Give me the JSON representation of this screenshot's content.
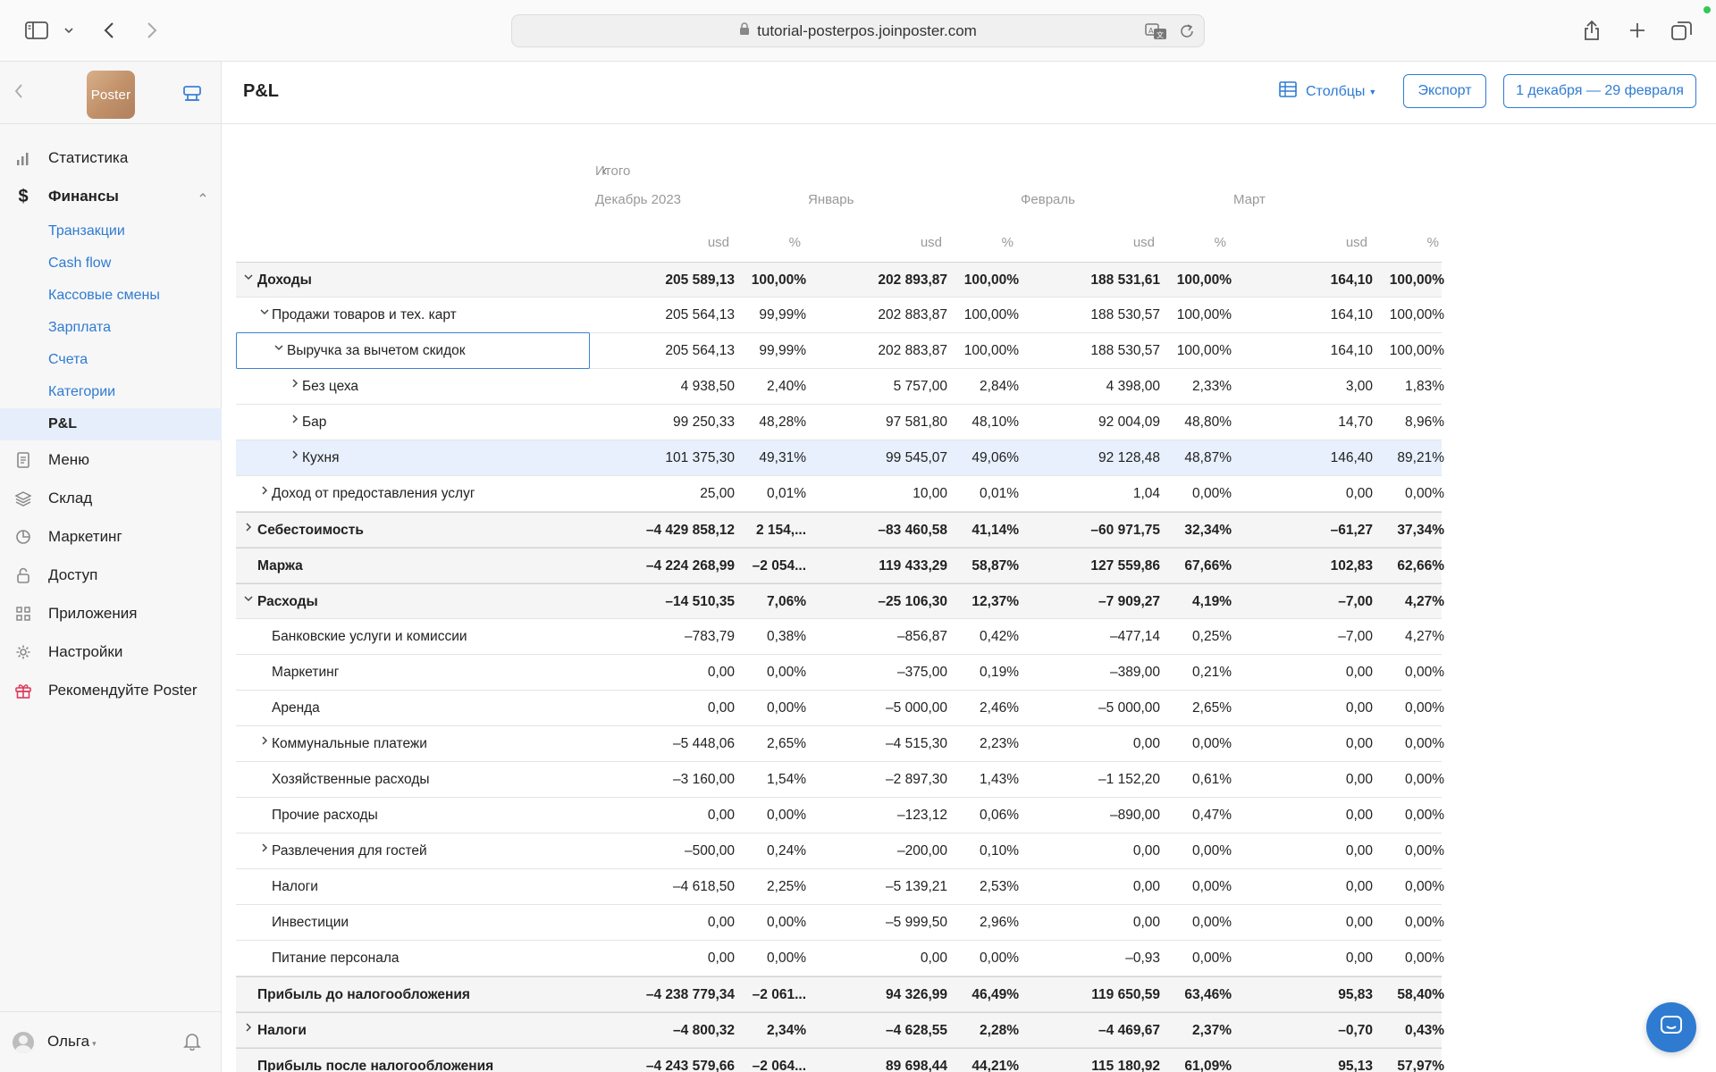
{
  "browser": {
    "url": "tutorial-posterpos.joinposter.com",
    "icons": [
      "sidebar-toggle-icon",
      "chevron-down-icon",
      "back-icon",
      "forward-icon",
      "lock-icon",
      "translate-icon",
      "reload-icon",
      "share-icon",
      "new-tab-icon",
      "tabs-overview-icon"
    ]
  },
  "sidebar": {
    "logo_text": "Poster",
    "nav": [
      {
        "label": "Статистика",
        "icon": "bar-chart-icon"
      },
      {
        "label": "Финансы",
        "icon": "dollar-icon",
        "expanded": true,
        "sub": [
          "Транзакции",
          "Cash flow",
          "Кассовые смены",
          "Зарплата",
          "Счета",
          "Категории",
          "P&L"
        ],
        "active_sub": "P&L"
      },
      {
        "label": "Меню",
        "icon": "document-icon"
      },
      {
        "label": "Склад",
        "icon": "layers-icon"
      },
      {
        "label": "Маркетинг",
        "icon": "pie-icon"
      },
      {
        "label": "Доступ",
        "icon": "lock-icon"
      },
      {
        "label": "Приложения",
        "icon": "grid-icon"
      },
      {
        "label": "Настройки",
        "icon": "gear-icon"
      },
      {
        "label": "Рекомендуйте Poster",
        "icon": "gift-icon"
      }
    ],
    "user": {
      "name": "Ольга"
    }
  },
  "header": {
    "title": "P&L",
    "columns_label": "Столбцы",
    "export_label": "Экспорт",
    "date_range": "1 декабря — 29 февраля"
  },
  "table": {
    "total_label": "Итого",
    "months": [
      "Декабрь 2023",
      "Январь",
      "Февраль",
      "Март"
    ],
    "unit_labels": [
      "usd",
      "%"
    ],
    "rows": [
      {
        "label": "Доходы",
        "level": 0,
        "toggle": "down",
        "style": "section",
        "values": [
          "205 589,13",
          "100,00%",
          "202 893,87",
          "100,00%",
          "188 531,61",
          "100,00%",
          "164,10",
          "100,00%"
        ]
      },
      {
        "label": "Продажи товаров и тех. карт",
        "level": 1,
        "toggle": "down",
        "values": [
          "205 564,13",
          "99,99%",
          "202 883,87",
          "100,00%",
          "188 530,57",
          "100,00%",
          "164,10",
          "100,00%"
        ]
      },
      {
        "label": "Выручка за вычетом скидок",
        "level": 2,
        "toggle": "down",
        "focused": true,
        "values": [
          "205 564,13",
          "99,99%",
          "202 883,87",
          "100,00%",
          "188 530,57",
          "100,00%",
          "164,10",
          "100,00%"
        ]
      },
      {
        "label": "Без цеха",
        "level": 3,
        "toggle": "right",
        "values": [
          "4 938,50",
          "2,40%",
          "5 757,00",
          "2,84%",
          "4 398,00",
          "2,33%",
          "3,00",
          "1,83%"
        ]
      },
      {
        "label": "Бар",
        "level": 3,
        "toggle": "right",
        "values": [
          "99 250,33",
          "48,28%",
          "97 581,80",
          "48,10%",
          "92 004,09",
          "48,80%",
          "14,70",
          "8,96%"
        ]
      },
      {
        "label": "Кухня",
        "level": 3,
        "toggle": "right",
        "style": "highlight",
        "values": [
          "101 375,30",
          "49,31%",
          "99 545,07",
          "49,06%",
          "92 128,48",
          "48,87%",
          "146,40",
          "89,21%"
        ]
      },
      {
        "label": "Доход от предоставления услуг",
        "level": 1,
        "toggle": "right",
        "values": [
          "25,00",
          "0,01%",
          "10,00",
          "0,01%",
          "1,04",
          "0,00%",
          "0,00",
          "0,00%"
        ]
      },
      {
        "label": "Себестоимость",
        "level": 0,
        "toggle": "right",
        "style": "section",
        "values": [
          "–4 429 858,12",
          "2 154,...",
          "–83 460,58",
          "41,14%",
          "–60 971,75",
          "32,34%",
          "–61,27",
          "37,34%"
        ]
      },
      {
        "label": "Маржа",
        "level": 0,
        "toggle": "",
        "style": "section",
        "values": [
          "–4 224 268,99",
          "–2 054...",
          "119 433,29",
          "58,87%",
          "127 559,86",
          "67,66%",
          "102,83",
          "62,66%"
        ]
      },
      {
        "label": "Расходы",
        "level": 0,
        "toggle": "down",
        "style": "section",
        "values": [
          "–14 510,35",
          "7,06%",
          "–25 106,30",
          "12,37%",
          "–7 909,27",
          "4,19%",
          "–7,00",
          "4,27%"
        ]
      },
      {
        "label": "Банковские услуги и комиссии",
        "level": 1,
        "toggle": "",
        "values": [
          "–783,79",
          "0,38%",
          "–856,87",
          "0,42%",
          "–477,14",
          "0,25%",
          "–7,00",
          "4,27%"
        ]
      },
      {
        "label": "Маркетинг",
        "level": 1,
        "toggle": "",
        "values": [
          "0,00",
          "0,00%",
          "–375,00",
          "0,19%",
          "–389,00",
          "0,21%",
          "0,00",
          "0,00%"
        ]
      },
      {
        "label": "Аренда",
        "level": 1,
        "toggle": "",
        "values": [
          "0,00",
          "0,00%",
          "–5 000,00",
          "2,46%",
          "–5 000,00",
          "2,65%",
          "0,00",
          "0,00%"
        ]
      },
      {
        "label": "Коммунальные платежи",
        "level": 1,
        "toggle": "right",
        "values": [
          "–5 448,06",
          "2,65%",
          "–4 515,30",
          "2,23%",
          "0,00",
          "0,00%",
          "0,00",
          "0,00%"
        ]
      },
      {
        "label": "Хозяйственные расходы",
        "level": 1,
        "toggle": "",
        "values": [
          "–3 160,00",
          "1,54%",
          "–2 897,30",
          "1,43%",
          "–1 152,20",
          "0,61%",
          "0,00",
          "0,00%"
        ]
      },
      {
        "label": "Прочие расходы",
        "level": 1,
        "toggle": "",
        "values": [
          "0,00",
          "0,00%",
          "–123,12",
          "0,06%",
          "–890,00",
          "0,47%",
          "0,00",
          "0,00%"
        ]
      },
      {
        "label": "Развлечения для гостей",
        "level": 1,
        "toggle": "right",
        "values": [
          "–500,00",
          "0,24%",
          "–200,00",
          "0,10%",
          "0,00",
          "0,00%",
          "0,00",
          "0,00%"
        ]
      },
      {
        "label": "Налоги",
        "level": 1,
        "toggle": "",
        "values": [
          "–4 618,50",
          "2,25%",
          "–5 139,21",
          "2,53%",
          "0,00",
          "0,00%",
          "0,00",
          "0,00%"
        ]
      },
      {
        "label": "Инвестиции",
        "level": 1,
        "toggle": "",
        "values": [
          "0,00",
          "0,00%",
          "–5 999,50",
          "2,96%",
          "0,00",
          "0,00%",
          "0,00",
          "0,00%"
        ]
      },
      {
        "label": "Питание персонала",
        "level": 1,
        "toggle": "",
        "values": [
          "0,00",
          "0,00%",
          "0,00",
          "0,00%",
          "–0,93",
          "0,00%",
          "0,00",
          "0,00%"
        ]
      },
      {
        "label": "Прибыль до налогообложения",
        "level": 0,
        "toggle": "",
        "style": "section",
        "values": [
          "–4 238 779,34",
          "–2 061...",
          "94 326,99",
          "46,49%",
          "119 650,59",
          "63,46%",
          "95,83",
          "58,40%"
        ]
      },
      {
        "label": "Налоги",
        "level": 0,
        "toggle": "right",
        "style": "section",
        "values": [
          "–4 800,32",
          "2,34%",
          "–4 628,55",
          "2,28%",
          "–4 469,67",
          "2,37%",
          "–0,70",
          "0,43%"
        ]
      },
      {
        "label": "Прибыль после налогообложения",
        "level": 0,
        "toggle": "",
        "style": "section",
        "values": [
          "–4 243 579,66",
          "–2 064...",
          "89 698,44",
          "44,21%",
          "115 180,92",
          "61,09%",
          "95,13",
          "57,97%"
        ]
      }
    ]
  },
  "colors": {
    "accent": "#2f7bd1",
    "section_bg": "#f5f5f6",
    "highlight_bg": "#e7f0fc",
    "gift": "#e0395a"
  }
}
